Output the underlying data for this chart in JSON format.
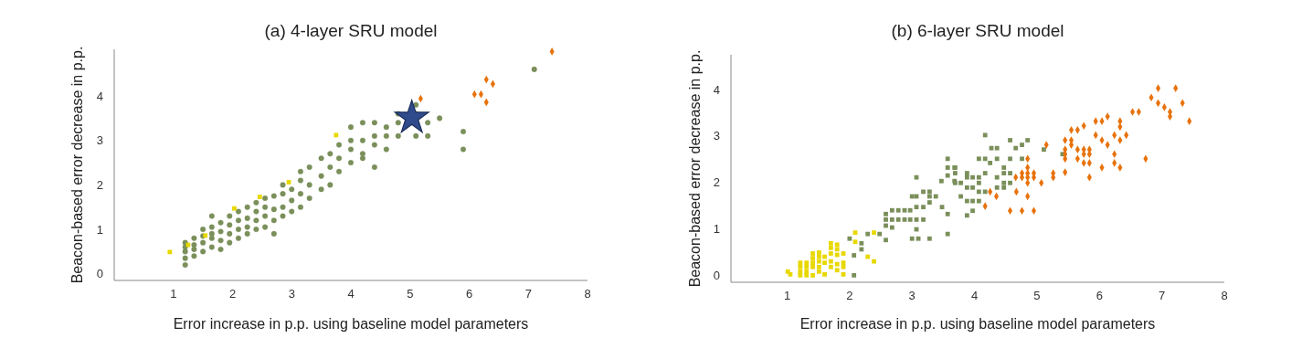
{
  "chart_data": [
    {
      "type": "scatter",
      "title": "(a) 4-layer SRU model",
      "xlabel": "Error increase in p.p. using baseline model parameters",
      "ylabel": "Beacon-based error decrease in p.p.",
      "xlim": [
        0,
        8
      ],
      "ylim": [
        -0.15,
        5.05
      ],
      "xticks": [
        1,
        2,
        3,
        4,
        5,
        6,
        7,
        8
      ],
      "yticks": [
        0,
        1,
        2,
        3,
        4
      ],
      "grid": false,
      "series": [
        {
          "color": "#7a8f5a",
          "marker": "circle",
          "x": [
            1.2,
            1.2,
            1.2,
            1.2,
            1.2,
            1.35,
            1.35,
            1.35,
            1.35,
            1.5,
            1.5,
            1.5,
            1.5,
            1.65,
            1.65,
            1.65,
            1.65,
            1.65,
            1.8,
            1.8,
            1.8,
            1.8,
            1.95,
            1.95,
            1.95,
            1.95,
            2.1,
            2.1,
            2.1,
            2.1,
            2.25,
            2.25,
            2.25,
            2.25,
            2.4,
            2.4,
            2.4,
            2.4,
            2.55,
            2.55,
            2.55,
            2.55,
            2.7,
            2.7,
            2.7,
            2.7,
            2.85,
            2.85,
            2.85,
            2.85,
            3.0,
            3.0,
            3.0,
            3.15,
            3.15,
            3.15,
            3.15,
            3.3,
            3.3,
            3.3,
            3.5,
            3.5,
            3.5,
            3.65,
            3.65,
            3.65,
            3.8,
            3.8,
            3.8,
            4.0,
            4.0,
            4.0,
            4.0,
            4.2,
            4.2,
            4.2,
            4.2,
            4.4,
            4.4,
            4.4,
            4.4,
            4.6,
            4.6,
            4.6,
            4.8,
            4.8,
            4.8,
            5.1,
            5.1,
            5.1,
            5.3,
            5.3,
            5.5,
            5.9,
            5.9,
            7.1
          ],
          "values": [
            0.2,
            0.35,
            0.5,
            0.6,
            0.7,
            0.4,
            0.55,
            0.65,
            0.8,
            0.5,
            0.7,
            0.85,
            1.0,
            0.6,
            0.8,
            0.9,
            1.05,
            1.3,
            0.55,
            0.75,
            0.95,
            1.15,
            0.7,
            0.9,
            1.1,
            1.3,
            0.8,
            1.0,
            1.2,
            1.4,
            0.9,
            1.05,
            1.25,
            1.5,
            1.0,
            1.2,
            1.4,
            1.6,
            1.05,
            1.3,
            1.5,
            1.7,
            0.9,
            1.2,
            1.45,
            1.75,
            1.3,
            1.5,
            1.8,
            2.0,
            1.4,
            1.65,
            1.9,
            1.5,
            1.8,
            2.1,
            2.3,
            1.7,
            2.0,
            2.4,
            1.9,
            2.2,
            2.6,
            2.0,
            2.4,
            2.7,
            2.3,
            2.6,
            2.9,
            2.5,
            2.8,
            3.0,
            3.3,
            2.6,
            2.7,
            3.0,
            3.4,
            2.4,
            2.9,
            3.1,
            3.4,
            2.8,
            3.1,
            3.3,
            3.1,
            3.4,
            3.6,
            3.1,
            3.6,
            3.8,
            3.1,
            3.4,
            3.5,
            2.8,
            3.2,
            4.6
          ]
        },
        {
          "color": "#e8d800",
          "marker": "square",
          "x": [
            0.94,
            1.25,
            1.54,
            2.03,
            2.46,
            2.95,
            3.75
          ],
          "values": [
            0.49,
            0.65,
            0.86,
            1.47,
            1.73,
            2.06,
            3.12
          ]
        },
        {
          "color": "#e8720c",
          "marker": "diamond",
          "x": [
            5.18,
            6.29,
            6.4,
            6.09,
            6.2,
            6.29,
            7.4
          ],
          "values": [
            3.94,
            4.37,
            4.27,
            4.04,
            4.04,
            3.86,
            5.0
          ]
        },
        {
          "color": "#2f4b8c",
          "marker": "star",
          "x": [
            5.03
          ],
          "values": [
            3.51
          ]
        }
      ]
    },
    {
      "type": "scatter",
      "title": "(b) 6-layer SRU model",
      "xlabel": "Error increase in p.p. using baseline model parameters",
      "ylabel": "Beacon-based error decrease in p.p.",
      "xlim": [
        0.1,
        8
      ],
      "ylim": [
        -0.15,
        4.75
      ],
      "xticks": [
        1,
        2,
        3,
        4,
        5,
        6,
        7,
        8
      ],
      "yticks": [
        0,
        1,
        2,
        3,
        4
      ],
      "grid": false,
      "series": [
        {
          "color": "#e8d800",
          "marker": "square",
          "x": [
            1.01,
            1.05,
            1.21,
            1.21,
            1.21,
            1.21,
            1.31,
            1.31,
            1.31,
            1.31,
            1.41,
            1.41,
            1.41,
            1.41,
            1.41,
            1.51,
            1.51,
            1.51,
            1.51,
            1.51,
            1.6,
            1.6,
            1.6,
            1.7,
            1.7,
            1.7,
            1.7,
            1.7,
            1.8,
            1.8,
            1.8,
            1.8,
            1.8,
            1.9,
            1.9,
            1.9,
            1.9,
            2.09,
            2.09,
            2.29,
            2.39,
            2.39
          ],
          "values": [
            0.08,
            0.02,
            0.27,
            0.18,
            0.08,
            0.0,
            0.27,
            0.18,
            0.08,
            0.0,
            0.47,
            0.37,
            0.27,
            0.18,
            0.0,
            0.49,
            0.4,
            0.3,
            0.18,
            0.08,
            0.4,
            0.27,
            0.02,
            0.69,
            0.59,
            0.47,
            0.3,
            0.18,
            0.66,
            0.56,
            0.44,
            0.24,
            0.11,
            0.47,
            0.27,
            0.18,
            0.02,
            0.92,
            0.72,
            0.4,
            0.3,
            0.92
          ]
        },
        {
          "color": "#7a8f5a",
          "marker": "square",
          "x": [
            2.0,
            2.07,
            2.07,
            2.19,
            2.19,
            2.29,
            2.48,
            2.58,
            2.58,
            2.58,
            2.58,
            2.68,
            2.68,
            2.68,
            2.78,
            2.78,
            2.88,
            2.88,
            2.97,
            2.97,
            3.0,
            3.0,
            3.07,
            3.07,
            3.07,
            3.07,
            3.07,
            3.1,
            3.18,
            3.18,
            3.18,
            3.28,
            3.28,
            3.28,
            3.28,
            3.38,
            3.47,
            3.48,
            3.57,
            3.57,
            3.57,
            3.57,
            3.57,
            3.68,
            3.68,
            3.69,
            3.69,
            3.69,
            3.78,
            3.78,
            3.88,
            3.88,
            3.88,
            3.88,
            3.88,
            3.97,
            3.97,
            3.97,
            3.97,
            4.07,
            4.07,
            4.07,
            4.07,
            4.07,
            4.17,
            4.17,
            4.17,
            4.17,
            4.25,
            4.27,
            4.36,
            4.36,
            4.36,
            4.36,
            4.47,
            4.47,
            4.47,
            4.47,
            4.57,
            4.57,
            4.57,
            4.57,
            4.66,
            4.76,
            4.76,
            4.85,
            5.11,
            5.41
          ],
          "values": [
            0.79,
            0.43,
            0.0,
            0.69,
            0.56,
            0.89,
            0.89,
            1.32,
            1.2,
            1.07,
            0.76,
            1.4,
            1.2,
            1.03,
            1.4,
            1.2,
            1.4,
            1.2,
            1.4,
            1.2,
            1.7,
            0.79,
            1.7,
            1.47,
            1.2,
            0.99,
            2.11,
            0.79,
            1.8,
            1.47,
            1.2,
            1.8,
            1.7,
            1.57,
            0.79,
            1.7,
            2.03,
            1.47,
            2.51,
            2.32,
            2.15,
            1.32,
            0.89,
            2.32,
            2.03,
            2.32,
            2.2,
            1.99,
            1.99,
            1.7,
            2.2,
            2.11,
            1.89,
            1.6,
            1.29,
            2.11,
            1.89,
            1.6,
            1.39,
            2.51,
            2.11,
            1.99,
            1.8,
            1.6,
            3.02,
            2.51,
            2.2,
            1.8,
            2.42,
            2.74,
            2.74,
            2.51,
            2.11,
            1.89,
            2.32,
            2.2,
            1.99,
            1.89,
            2.91,
            2.51,
            2.2,
            1.99,
            2.74,
            2.81,
            2.51,
            2.91,
            2.71,
            2.61
          ]
        },
        {
          "color": "#e8720c",
          "marker": "diamond",
          "x": [
            6.94,
            7.22,
            6.83,
            6.94,
            7.04,
            7.13,
            7.13,
            7.33,
            7.44,
            6.53,
            6.63,
            6.13,
            5.94,
            6.04,
            6.33,
            6.33,
            5.75,
            5.65,
            5.55,
            5.94,
            6.24,
            6.43,
            6.04,
            6.33,
            6.13,
            5.45,
            5.55,
            5.55,
            5.45,
            5.65,
            5.75,
            5.84,
            5.75,
            5.84,
            6.24,
            5.45,
            5.45,
            5.65,
            6.74,
            5.75,
            5.84,
            6.24,
            6.04,
            6.33,
            5.45,
            5.84,
            5.26,
            5.26,
            5.07,
            4.76,
            4.85,
            4.85,
            4.95,
            4.76,
            4.85,
            4.95,
            4.85,
            4.66,
            4.67,
            4.85,
            4.17,
            4.57,
            4.76,
            4.95,
            4.35,
            4.25,
            4.85,
            5.15
          ],
          "values": [
            4.03,
            4.03,
            3.83,
            3.71,
            3.62,
            3.52,
            3.42,
            3.71,
            3.32,
            3.52,
            3.52,
            3.42,
            3.32,
            3.32,
            3.32,
            3.2,
            3.22,
            3.13,
            3.13,
            3.02,
            3.02,
            3.02,
            2.91,
            2.91,
            2.81,
            2.91,
            2.91,
            2.81,
            2.71,
            2.71,
            2.71,
            2.71,
            2.61,
            2.61,
            2.61,
            2.61,
            2.51,
            2.51,
            2.51,
            2.42,
            2.42,
            2.42,
            2.32,
            2.32,
            2.22,
            2.11,
            2.2,
            2.11,
            1.99,
            2.2,
            2.32,
            2.2,
            2.2,
            2.11,
            2.11,
            2.11,
            1.99,
            2.11,
            1.8,
            1.7,
            1.49,
            1.39,
            1.39,
            1.39,
            1.7,
            1.8,
            2.51,
            2.81
          ]
        }
      ]
    }
  ]
}
